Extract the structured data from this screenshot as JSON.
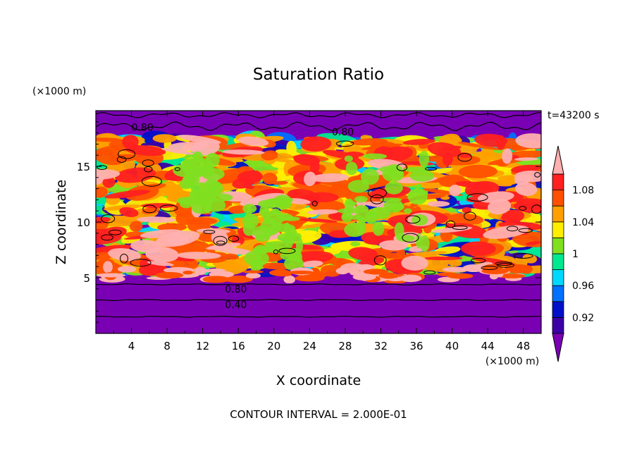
{
  "chart_data": {
    "type": "heatmap",
    "title": "Saturation Ratio",
    "xlabel": "X coordinate",
    "ylabel": "Z coordinate",
    "x_unit": "(×1000 m)",
    "y_unit": "(×1000 m)",
    "time_label": "t=43200 s",
    "footer": "CONTOUR INTERVAL = 2.000E-01",
    "xlim": [
      0,
      50
    ],
    "ylim": [
      0,
      20
    ],
    "x_ticks": [
      4,
      8,
      12,
      16,
      20,
      24,
      28,
      32,
      36,
      40,
      44,
      48
    ],
    "y_ticks": [
      5,
      10,
      15
    ],
    "colorbar_labels": [
      "1.08",
      "1.04",
      "1",
      "0.96",
      "0.92"
    ],
    "colorbar_values": [
      1.08,
      1.04,
      1.0,
      0.96,
      0.92
    ],
    "contour_labels": [
      "0.80",
      "0.80",
      "0.80",
      "0.40"
    ],
    "levels": [
      0.9,
      0.92,
      0.94,
      0.96,
      0.98,
      1.0,
      1.02,
      1.04,
      1.06,
      1.08,
      1.1
    ],
    "colors": [
      "#7a00b4",
      "#3b00a8",
      "#0010c8",
      "#0070ff",
      "#00d8ff",
      "#00e890",
      "#80e020",
      "#ffee00",
      "#ffa000",
      "#ff5000",
      "#ff2020",
      "#ffb0b0"
    ]
  }
}
